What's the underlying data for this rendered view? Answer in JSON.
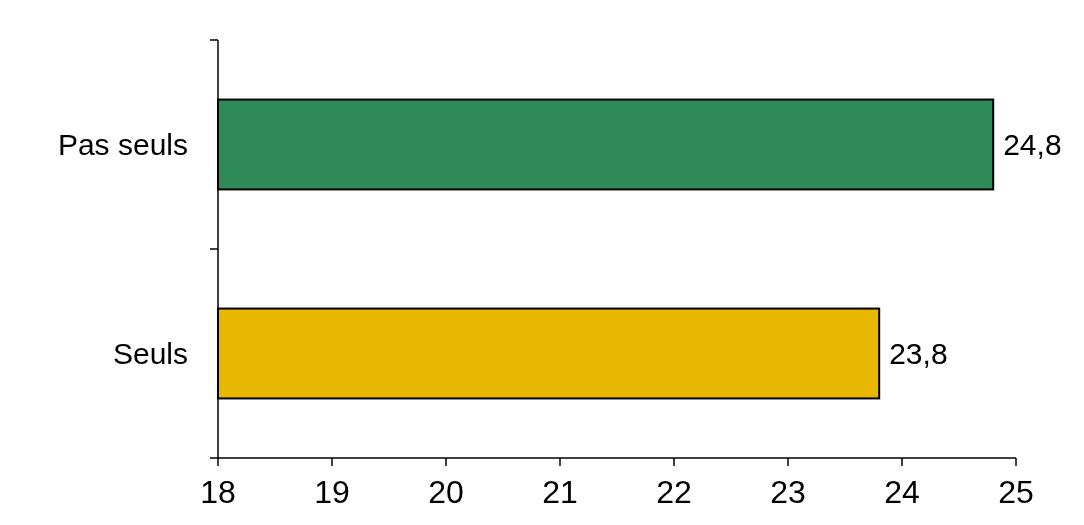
{
  "chart_data": {
    "type": "bar",
    "orientation": "horizontal",
    "categories": [
      "Pas seuls",
      "Seuls"
    ],
    "values": [
      24.8,
      23.8
    ],
    "colors": [
      "#2e8b57",
      "#e8b800"
    ],
    "value_labels": [
      "24,8",
      "23,8"
    ],
    "xlim": [
      18,
      25
    ],
    "xticks": [
      18,
      19,
      20,
      21,
      22,
      23,
      24,
      25
    ]
  }
}
